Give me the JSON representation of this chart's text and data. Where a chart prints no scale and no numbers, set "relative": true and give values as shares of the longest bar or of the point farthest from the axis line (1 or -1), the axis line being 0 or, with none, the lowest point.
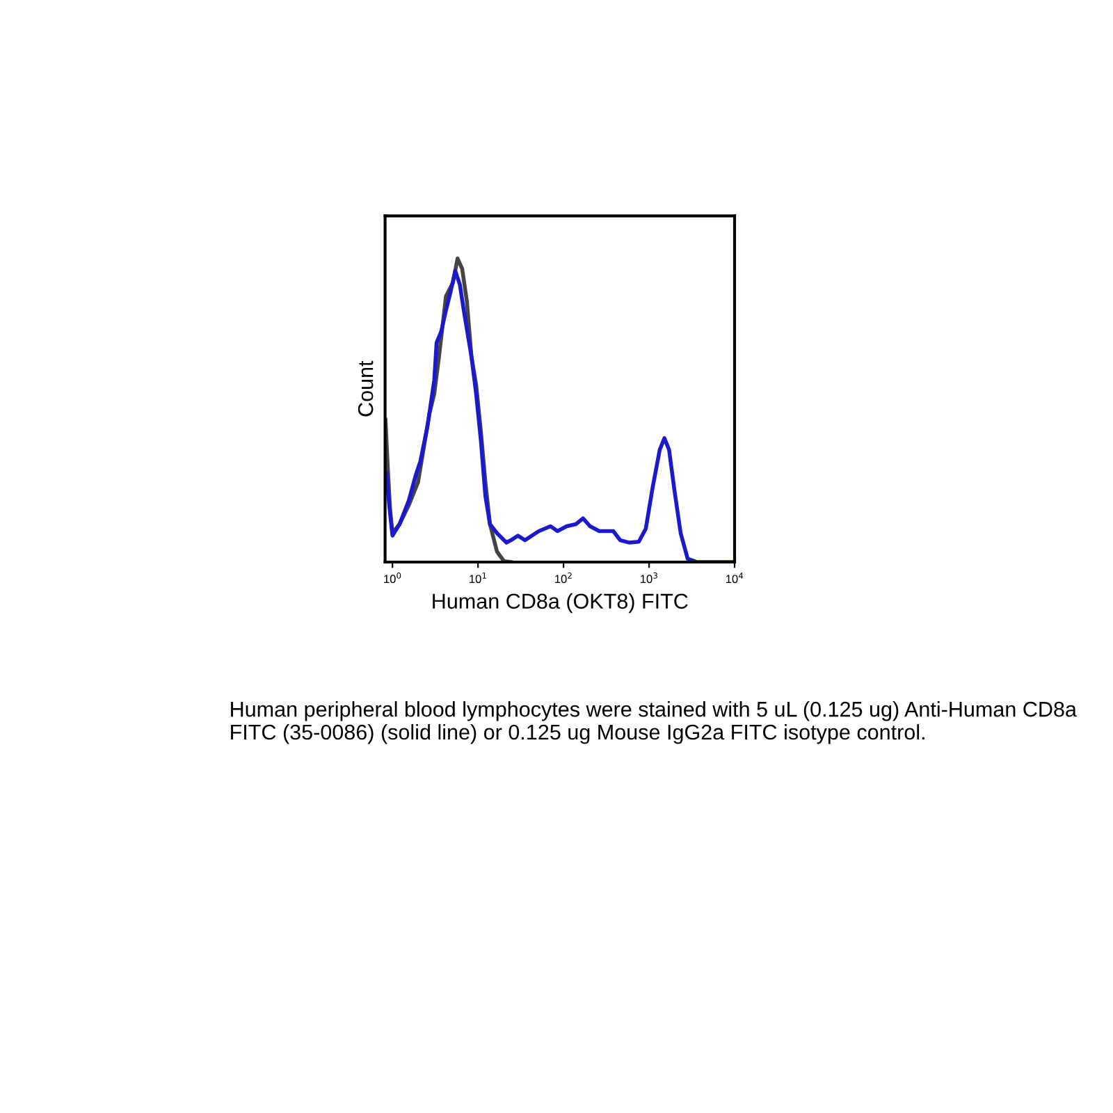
{
  "chart_data": {
    "type": "line",
    "relative": true,
    "xlabel": "Human CD8a (OKT8) FITC",
    "ylabel": "Count",
    "log": "x",
    "xlim": [
      0.82,
      10000
    ],
    "xticks": [
      {
        "value": 1,
        "label": "10$^{0}$"
      },
      {
        "value": 10,
        "label": "10$^{1}$"
      },
      {
        "value": 100,
        "label": "10$^{2}$"
      },
      {
        "value": 1000,
        "label": "10$^{3}$"
      },
      {
        "value": 10000,
        "label": "10$^{4}$"
      }
    ],
    "grid": false,
    "legend": false,
    "marker": "none",
    "line_style": "solid",
    "series": [
      {
        "color": "#444444",
        "x": [
          0.829,
          0.882,
          0.939,
          1,
          1.21,
          1.55,
          1.99,
          2.4,
          2.72,
          3.08,
          3.5,
          4.22,
          5.09,
          5.77,
          6.53,
          7.41,
          8.39,
          9.51,
          10.8,
          12.2,
          13.8,
          16.7,
          20.1,
          24.3
        ],
        "values": [
          0.469,
          0.309,
          0.171,
          0.095,
          0.125,
          0.187,
          0.263,
          0.401,
          0.492,
          0.554,
          0.676,
          0.875,
          0.92,
          1,
          0.966,
          0.859,
          0.676,
          0.584,
          0.431,
          0.263,
          0.125,
          0.034,
          0.003,
          0
        ]
      },
      {
        "color": "#1a1acc",
        "x": [
          0.85,
          0.916,
          1,
          1.21,
          1.55,
          1.87,
          2.12,
          2.56,
          3.08,
          3.28,
          3.72,
          4.22,
          4.78,
          5.42,
          6.14,
          6.96,
          8.39,
          9.51,
          10.8,
          12.2,
          13.8,
          16.7,
          21.5,
          24.3,
          29.3,
          35.4,
          42.7,
          51.5,
          70.5,
          85,
          109,
          140,
          169,
          204,
          262,
          382,
          460,
          591,
          759,
          916,
          1105,
          1334,
          1510,
          1713,
          1990,
          2343,
          2827,
          3630,
          10000
        ],
        "values": [
          0.294,
          0.187,
          0.087,
          0.125,
          0.202,
          0.286,
          0.332,
          0.446,
          0.599,
          0.722,
          0.76,
          0.829,
          0.89,
          0.959,
          0.913,
          0.813,
          0.676,
          0.554,
          0.401,
          0.217,
          0.125,
          0.095,
          0.064,
          0.072,
          0.087,
          0.072,
          0.087,
          0.102,
          0.118,
          0.102,
          0.118,
          0.125,
          0.144,
          0.118,
          0.102,
          0.102,
          0.072,
          0.064,
          0.067,
          0.11,
          0.248,
          0.37,
          0.408,
          0.37,
          0.232,
          0.095,
          0.011,
          0,
          0
        ]
      }
    ],
    "annotations": [
      "Human peripheral blood lymphocytes were stained with 5 uL (0.125 ug) Anti-Human CD8a FITC (35-0086) (solid line) or 0.125 ug Mouse IgG2a FITC isotype control."
    ]
  }
}
